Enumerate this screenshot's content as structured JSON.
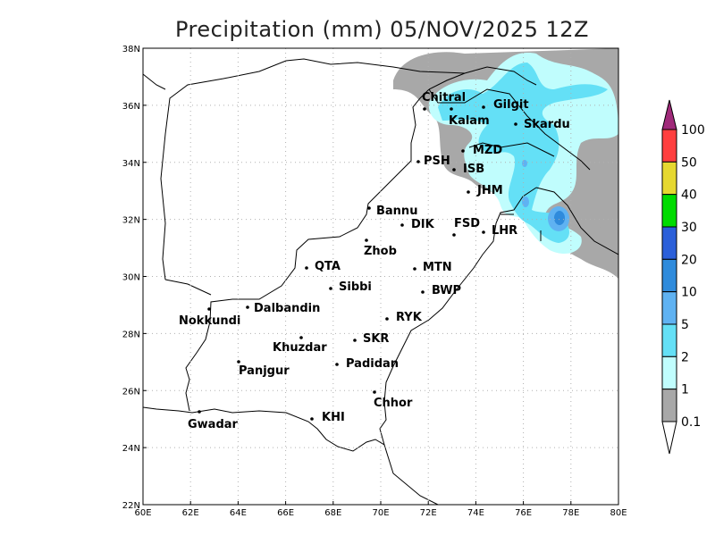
{
  "title": "Precipitation (mm) 05/NOV/2025 12Z",
  "axes": {
    "lon_ticks": [
      "60E",
      "62E",
      "64E",
      "66E",
      "68E",
      "70E",
      "72E",
      "74E",
      "76E",
      "78E",
      "80E"
    ],
    "lat_ticks": [
      "38N",
      "36N",
      "34N",
      "32N",
      "30N",
      "28N",
      "26N",
      "24N",
      "22N"
    ],
    "grid": "dotted every 2 degrees"
  },
  "colorbar": {
    "labels": [
      "100",
      "50",
      "40",
      "30",
      "20",
      "10",
      "5",
      "2",
      "1",
      "0.1"
    ],
    "colors": [
      "#ff3f3f",
      "#e6d830",
      "#00dc00",
      "#2b5fd9",
      "#2f8bdc",
      "#5fb2f2",
      "#64e0f6",
      "#c0fdfd",
      "#a8a8a8"
    ],
    "over_color": "#a02a7a",
    "under_color": "#ffffff"
  },
  "cities": [
    "Chitral",
    "Kalam",
    "Gilgit",
    "Skardu",
    "MZD",
    "PSH",
    "ISB",
    "JHM",
    "Bannu",
    "DIK",
    "FSD",
    "LHR",
    "Zhob",
    "QTA",
    "MTN",
    "Sibbi",
    "BWP",
    "Dalbandin",
    "Nokkundi",
    "RYK",
    "Khuzdar",
    "SKR",
    "Panjgur",
    "Padidan",
    "Chhor",
    "KHI",
    "Gwadar"
  ]
}
